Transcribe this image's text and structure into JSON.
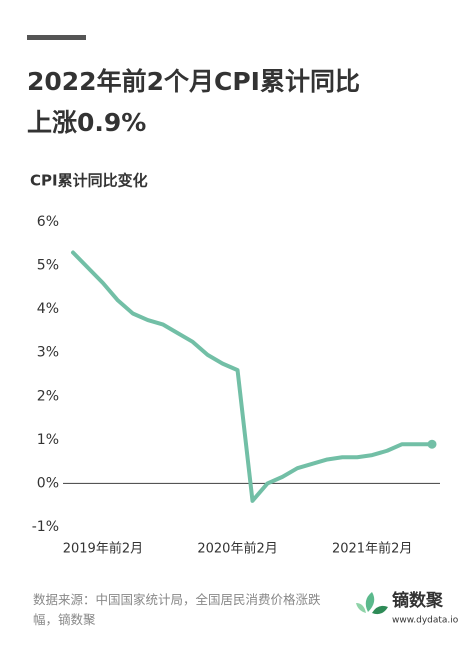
{
  "chart_data": {
    "type": "line",
    "title": [
      "2022年前2个月CPI累计同比",
      "上涨0.9%"
    ],
    "y_label": "CPI累计同比变化",
    "categories": [
      null,
      null,
      "2019年前2月",
      null,
      null,
      null,
      null,
      null,
      null,
      null,
      null,
      "2020年前2月",
      null,
      null,
      null,
      null,
      null,
      null,
      null,
      null,
      "2021年前2月",
      null,
      null,
      null,
      null
    ],
    "series": [
      {
        "name": "CPI累计同比",
        "color": "#72bfa6",
        "values": [
          5.3,
          4.95,
          4.6,
          4.2,
          3.9,
          3.75,
          3.65,
          3.45,
          3.25,
          2.95,
          2.75,
          2.6,
          -0.4,
          0.0,
          0.15,
          0.35,
          0.45,
          0.55,
          0.6,
          0.6,
          0.65,
          0.75,
          0.9,
          0.9,
          0.9
        ]
      }
    ],
    "ylim": [
      -1,
      6
    ],
    "yticks": [
      {
        "value": -1,
        "label": "-1%"
      },
      {
        "value": 0,
        "label": "0%"
      },
      {
        "value": 1,
        "label": "1%"
      },
      {
        "value": 2,
        "label": "2%"
      },
      {
        "value": 3,
        "label": "3%"
      },
      {
        "value": 4,
        "label": "4%"
      },
      {
        "value": 5,
        "label": "5%"
      },
      {
        "value": 6,
        "label": "6%"
      }
    ],
    "grid": false,
    "source": "数据来源：中国国家统计局，全国居民消费价格涨跌幅，镝数聚",
    "brand": "镝数聚",
    "brand_url": "www.dydata.io"
  }
}
